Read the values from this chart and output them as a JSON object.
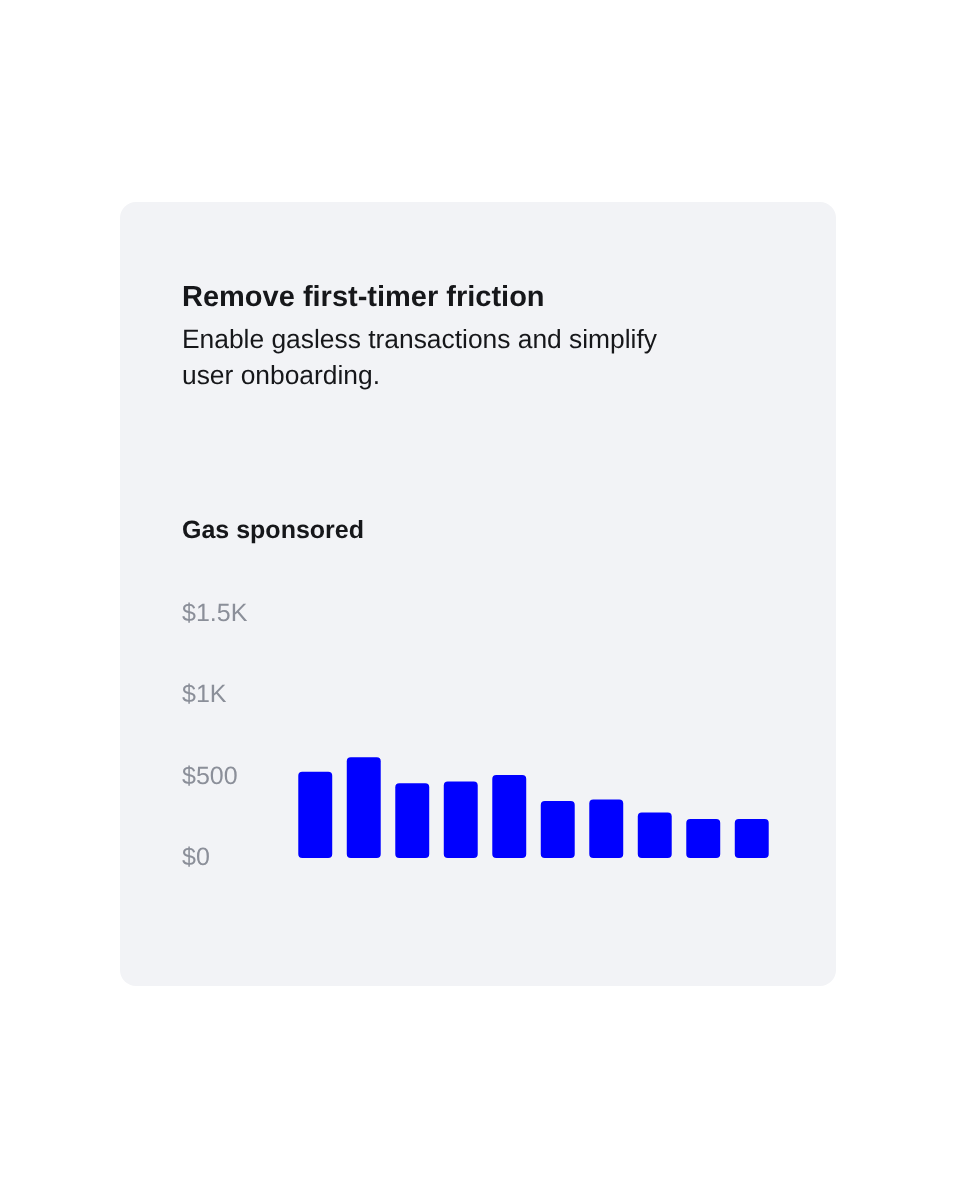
{
  "chart_data": {
    "type": "bar",
    "title": "Remove first-timer friction",
    "subtitle": "Enable gasless transactions and simplify user onboarding.",
    "ylabel": "Gas sponsored",
    "categories": [
      null,
      null,
      null,
      null,
      null,
      null,
      null,
      null,
      null,
      null
    ],
    "values": [
      530,
      620,
      460,
      470,
      510,
      350,
      360,
      280,
      240,
      240
    ],
    "color": "#0000ff",
    "ylim": [
      0,
      1500
    ],
    "yticks": [
      {
        "value": 0,
        "label": "$0"
      },
      {
        "value": 500,
        "label": "$500"
      },
      {
        "value": 1000,
        "label": "$1K"
      },
      {
        "value": 1500,
        "label": "$1.5K"
      }
    ],
    "grid": false,
    "legend": false,
    "tick_labels": "y"
  }
}
